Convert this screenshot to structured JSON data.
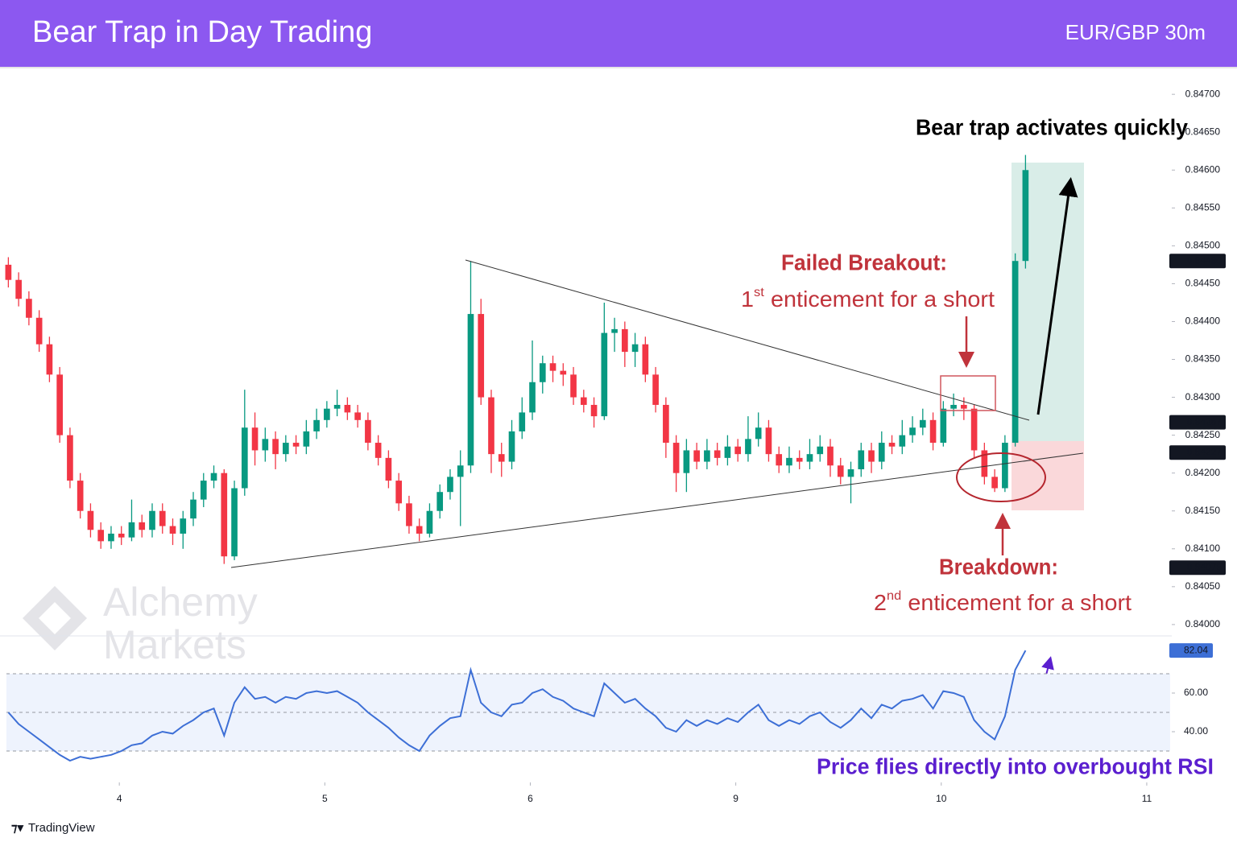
{
  "header": {
    "title": "Bear Trap in Day Trading",
    "symbol": "EUR/GBP 30m"
  },
  "chart_data": {
    "type": "candlestick",
    "up_color": "#089981",
    "down_color": "#f23645",
    "xlim": [
      -0.5,
      113
    ],
    "xticks": [
      {
        "value": 10.8,
        "label": "4"
      },
      {
        "value": 30.8,
        "label": "5"
      },
      {
        "value": 50.8,
        "label": "6"
      },
      {
        "value": 70.8,
        "label": "9"
      },
      {
        "value": 90.8,
        "label": "10"
      },
      {
        "value": 110.8,
        "label": "11"
      }
    ],
    "ylim": [
      0.83985,
      0.84731
    ],
    "yticks": [
      {
        "value": 0.84,
        "label": "0.84000"
      },
      {
        "value": 0.8405,
        "label": "0.84050"
      },
      {
        "value": 0.841,
        "label": "0.84100"
      },
      {
        "value": 0.8415,
        "label": "0.84150"
      },
      {
        "value": 0.842,
        "label": "0.84200"
      },
      {
        "value": 0.8425,
        "label": "0.84250"
      },
      {
        "value": 0.843,
        "label": "0.84300"
      },
      {
        "value": 0.8435,
        "label": "0.84350"
      },
      {
        "value": 0.844,
        "label": "0.84400"
      },
      {
        "value": 0.8445,
        "label": "0.84450"
      },
      {
        "value": 0.845,
        "label": "0.84500"
      },
      {
        "value": 0.8455,
        "label": "0.84550"
      },
      {
        "value": 0.846,
        "label": "0.84600"
      },
      {
        "value": 0.8465,
        "label": "0.84650"
      },
      {
        "value": 0.847,
        "label": "0.84700"
      }
    ],
    "price_labels": [
      {
        "value": 0.8448,
        "label": "0.84480"
      },
      {
        "value": 0.84267,
        "label": "0.84267"
      },
      {
        "value": 0.84227,
        "label": "0.84227"
      },
      {
        "value": 0.84075,
        "label": "0.84075"
      }
    ],
    "ohlc": [
      [
        0.84475,
        0.84485,
        0.84445,
        0.84455
      ],
      [
        0.84455,
        0.84465,
        0.8442,
        0.8443
      ],
      [
        0.8443,
        0.8444,
        0.84395,
        0.84405
      ],
      [
        0.84405,
        0.84415,
        0.8436,
        0.8437
      ],
      [
        0.8437,
        0.8438,
        0.8432,
        0.8433
      ],
      [
        0.8433,
        0.8434,
        0.8424,
        0.8425
      ],
      [
        0.8425,
        0.8426,
        0.8418,
        0.8419
      ],
      [
        0.8419,
        0.842,
        0.8414,
        0.8415
      ],
      [
        0.8415,
        0.8416,
        0.84115,
        0.84125
      ],
      [
        0.84125,
        0.84135,
        0.841,
        0.8411
      ],
      [
        0.8411,
        0.8413,
        0.841,
        0.8412
      ],
      [
        0.8412,
        0.8413,
        0.84105,
        0.84115
      ],
      [
        0.84115,
        0.84165,
        0.8411,
        0.84135
      ],
      [
        0.84135,
        0.84145,
        0.84115,
        0.84125
      ],
      [
        0.84125,
        0.8416,
        0.84115,
        0.8415
      ],
      [
        0.8415,
        0.8416,
        0.8412,
        0.8413
      ],
      [
        0.8413,
        0.8414,
        0.84105,
        0.8412
      ],
      [
        0.8412,
        0.8415,
        0.841,
        0.8414
      ],
      [
        0.8414,
        0.84175,
        0.8413,
        0.84165
      ],
      [
        0.84165,
        0.842,
        0.84155,
        0.8419
      ],
      [
        0.8419,
        0.8421,
        0.8418,
        0.842
      ],
      [
        0.842,
        0.84205,
        0.8408,
        0.8409
      ],
      [
        0.8409,
        0.8419,
        0.84085,
        0.8418
      ],
      [
        0.8418,
        0.8431,
        0.8417,
        0.8426
      ],
      [
        0.8426,
        0.8428,
        0.8421,
        0.8423
      ],
      [
        0.8423,
        0.8426,
        0.84215,
        0.84245
      ],
      [
        0.84245,
        0.84255,
        0.84205,
        0.84225
      ],
      [
        0.84225,
        0.8425,
        0.84215,
        0.8424
      ],
      [
        0.8424,
        0.8425,
        0.84225,
        0.84235
      ],
      [
        0.84235,
        0.8427,
        0.84225,
        0.84255
      ],
      [
        0.84255,
        0.84285,
        0.84245,
        0.8427
      ],
      [
        0.8427,
        0.84295,
        0.8426,
        0.84285
      ],
      [
        0.84285,
        0.8431,
        0.84275,
        0.8429
      ],
      [
        0.8429,
        0.843,
        0.8427,
        0.8428
      ],
      [
        0.8428,
        0.8429,
        0.8426,
        0.8427
      ],
      [
        0.8427,
        0.8428,
        0.8423,
        0.8424
      ],
      [
        0.8424,
        0.8425,
        0.8421,
        0.8422
      ],
      [
        0.8422,
        0.8423,
        0.8418,
        0.8419
      ],
      [
        0.8419,
        0.842,
        0.8415,
        0.8416
      ],
      [
        0.8416,
        0.8417,
        0.8412,
        0.8413
      ],
      [
        0.8413,
        0.8414,
        0.8411,
        0.8412
      ],
      [
        0.8412,
        0.8416,
        0.84115,
        0.8415
      ],
      [
        0.8415,
        0.84185,
        0.8414,
        0.84175
      ],
      [
        0.84175,
        0.84205,
        0.84165,
        0.84195
      ],
      [
        0.84195,
        0.8423,
        0.8413,
        0.8421
      ],
      [
        0.8421,
        0.8448,
        0.842,
        0.8441
      ],
      [
        0.8441,
        0.8443,
        0.8429,
        0.843
      ],
      [
        0.843,
        0.8431,
        0.842,
        0.84225
      ],
      [
        0.84225,
        0.8424,
        0.84195,
        0.84215
      ],
      [
        0.84215,
        0.8427,
        0.84205,
        0.84255
      ],
      [
        0.84255,
        0.843,
        0.84245,
        0.8428
      ],
      [
        0.8428,
        0.84375,
        0.8427,
        0.8432
      ],
      [
        0.8432,
        0.84355,
        0.84305,
        0.84345
      ],
      [
        0.84345,
        0.84355,
        0.8432,
        0.84335
      ],
      [
        0.84335,
        0.84345,
        0.84315,
        0.8433
      ],
      [
        0.8433,
        0.8434,
        0.8429,
        0.843
      ],
      [
        0.843,
        0.8431,
        0.8428,
        0.8429
      ],
      [
        0.8429,
        0.843,
        0.8426,
        0.84275
      ],
      [
        0.84275,
        0.84425,
        0.8427,
        0.84385
      ],
      [
        0.84385,
        0.84405,
        0.8436,
        0.8439
      ],
      [
        0.8439,
        0.844,
        0.8434,
        0.8436
      ],
      [
        0.8436,
        0.84385,
        0.8434,
        0.8437
      ],
      [
        0.8437,
        0.8438,
        0.8432,
        0.8433
      ],
      [
        0.8433,
        0.8434,
        0.8428,
        0.8429
      ],
      [
        0.8429,
        0.843,
        0.8422,
        0.8424
      ],
      [
        0.8424,
        0.8425,
        0.84175,
        0.842
      ],
      [
        0.842,
        0.84245,
        0.84175,
        0.8423
      ],
      [
        0.8423,
        0.8424,
        0.84205,
        0.84215
      ],
      [
        0.84215,
        0.84245,
        0.84205,
        0.8423
      ],
      [
        0.8423,
        0.8424,
        0.8421,
        0.8422
      ],
      [
        0.8422,
        0.8425,
        0.8421,
        0.84235
      ],
      [
        0.84235,
        0.84245,
        0.84215,
        0.84225
      ],
      [
        0.84225,
        0.84275,
        0.84215,
        0.84245
      ],
      [
        0.84245,
        0.8428,
        0.84235,
        0.8426
      ],
      [
        0.8426,
        0.8427,
        0.84215,
        0.84225
      ],
      [
        0.84225,
        0.84235,
        0.842,
        0.8421
      ],
      [
        0.8421,
        0.84235,
        0.842,
        0.8422
      ],
      [
        0.8422,
        0.8423,
        0.84205,
        0.84215
      ],
      [
        0.84215,
        0.84245,
        0.84205,
        0.84225
      ],
      [
        0.84225,
        0.8425,
        0.84215,
        0.84235
      ],
      [
        0.84235,
        0.84245,
        0.84195,
        0.8421
      ],
      [
        0.8421,
        0.8422,
        0.84185,
        0.84195
      ],
      [
        0.84195,
        0.84215,
        0.8416,
        0.84205
      ],
      [
        0.84205,
        0.8424,
        0.84195,
        0.8423
      ],
      [
        0.8423,
        0.8424,
        0.842,
        0.84215
      ],
      [
        0.84215,
        0.84255,
        0.84205,
        0.8424
      ],
      [
        0.8424,
        0.8425,
        0.84225,
        0.84235
      ],
      [
        0.84235,
        0.8427,
        0.84225,
        0.8425
      ],
      [
        0.8425,
        0.84275,
        0.8424,
        0.8426
      ],
      [
        0.8426,
        0.84285,
        0.8425,
        0.8427
      ],
      [
        0.8427,
        0.8428,
        0.8423,
        0.8424
      ],
      [
        0.8424,
        0.84295,
        0.84235,
        0.84285
      ],
      [
        0.84285,
        0.84305,
        0.84275,
        0.8429
      ],
      [
        0.8429,
        0.843,
        0.8427,
        0.84285
      ],
      [
        0.84285,
        0.8429,
        0.8422,
        0.8423
      ],
      [
        0.8423,
        0.8424,
        0.84185,
        0.84195
      ],
      [
        0.84195,
        0.84205,
        0.84175,
        0.8418
      ],
      [
        0.8418,
        0.8425,
        0.84175,
        0.8424
      ],
      [
        0.8424,
        0.8449,
        0.84235,
        0.8448
      ],
      [
        0.8448,
        0.8462,
        0.8447,
        0.846
      ]
    ],
    "rsi": {
      "color": "#3d6fd6",
      "ylim": [
        15,
        90
      ],
      "yticks": [
        {
          "value": 40,
          "label": "40.00"
        },
        {
          "value": 60,
          "label": "60.00"
        }
      ],
      "levels": [
        30,
        50,
        70
      ],
      "values": [
        50,
        44,
        40,
        36,
        32,
        28,
        25,
        27,
        26,
        27,
        28,
        30,
        33,
        34,
        38,
        40,
        39,
        43,
        46,
        50,
        52,
        38,
        55,
        63,
        57,
        58,
        55,
        58,
        57,
        60,
        61,
        60,
        61,
        58,
        55,
        50,
        46,
        42,
        37,
        33,
        30,
        38,
        43,
        47,
        48,
        72,
        55,
        50,
        48,
        54,
        55,
        60,
        62,
        58,
        56,
        52,
        50,
        48,
        65,
        60,
        55,
        57,
        52,
        48,
        42,
        40,
        46,
        43,
        46,
        44,
        47,
        45,
        50,
        54,
        46,
        43,
        46,
        44,
        48,
        50,
        45,
        42,
        46,
        52,
        47,
        54,
        52,
        56,
        57,
        59,
        52,
        61,
        60,
        58,
        46,
        40,
        36,
        48,
        72,
        82.04
      ]
    },
    "annotations": {
      "activates": "Bear trap activates quickly",
      "failed_title": "Failed Breakout:",
      "failed_note": [
        "1",
        "st",
        "enticement for a short"
      ],
      "breakdown_title": "Breakdown:",
      "breakdown_note": [
        "2",
        "nd",
        "enticement for a short"
      ],
      "rsi_note": "Price flies directly into overbought RSI"
    }
  },
  "watermark": [
    "Alchemy",
    "Markets"
  ],
  "footer": "TradingView"
}
